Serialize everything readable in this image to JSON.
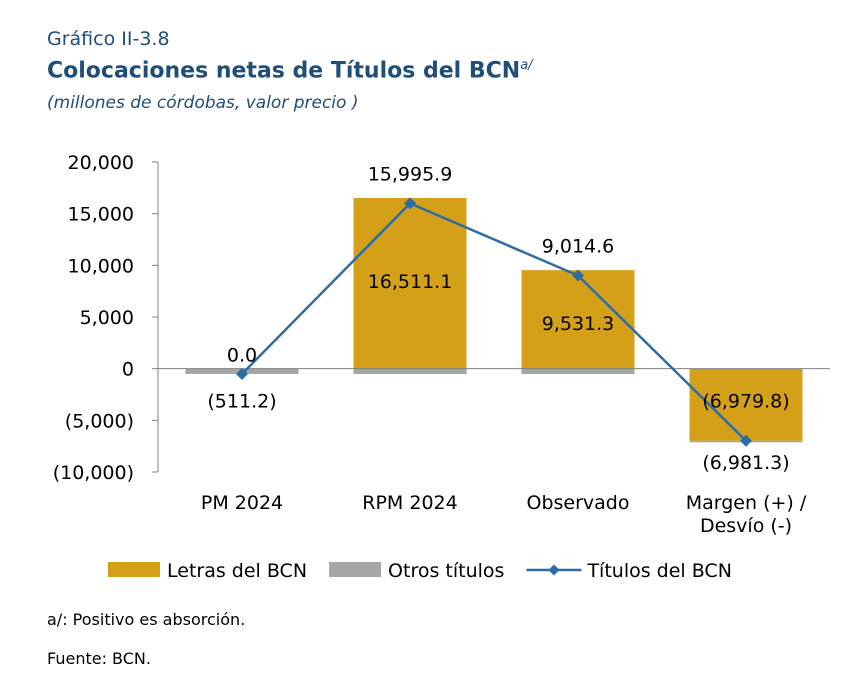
{
  "header": {
    "chart_number": "Gráfico II-3.8",
    "title": "Colocaciones netas de Títulos del BCN",
    "title_superscript": "a/",
    "subtitle": "(millones de córdobas, valor precio )"
  },
  "chart_data": {
    "type": "bar",
    "categories": [
      "PM 2024",
      "RPM 2024",
      "Observado",
      "Margen (+) / Desvío (-)"
    ],
    "category_lines": [
      [
        "PM 2024"
      ],
      [
        "RPM 2024"
      ],
      [
        "Observado"
      ],
      [
        "Margen (+) /",
        "Desvío (-)"
      ]
    ],
    "ylim": [
      -10000,
      20000
    ],
    "yticks": [
      20000,
      15000,
      10000,
      5000,
      0,
      -5000,
      -10000
    ],
    "ytick_labels": [
      "20,000",
      "15,000",
      "10,000",
      "5,000",
      "0",
      "(5,000)",
      "(10,000)"
    ],
    "stacked": true,
    "series": [
      {
        "name": "Letras del BCN",
        "kind": "bar",
        "color": "#d4a017",
        "values": [
          0.0,
          16511.1,
          9531.3,
          -6979.8
        ],
        "labels": [
          "0.0",
          "16,511.1",
          "9,531.3",
          "(6,979.8)"
        ]
      },
      {
        "name": "Otros títulos",
        "kind": "bar",
        "color": "#a6a6a6",
        "values": [
          -511.2,
          -515.2,
          -516.7,
          -1.5
        ],
        "labels": [
          "(511.2)",
          "",
          "",
          ""
        ]
      },
      {
        "name": "Títulos del BCN",
        "kind": "line",
        "color": "#2e6da4",
        "marker": "diamond",
        "values": [
          -511.2,
          15995.9,
          9014.6,
          -6981.3
        ],
        "labels": [
          "",
          "15,995.9",
          "9,014.6",
          "(6,981.3)"
        ]
      }
    ],
    "legend_position": "bottom",
    "grid": false
  },
  "footnotes": {
    "note": "a/: Positivo es absorción.",
    "source": "Fuente: BCN."
  }
}
